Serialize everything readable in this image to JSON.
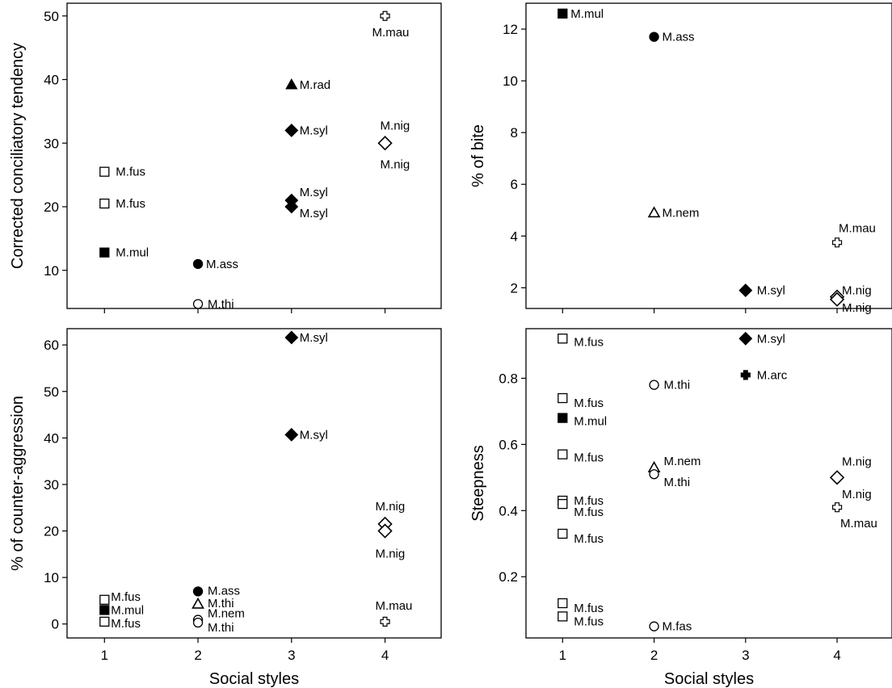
{
  "figure": {
    "xlabel_bottom_left": "Social styles",
    "xlabel_bottom_right": "Social styles"
  },
  "chart_data": [
    {
      "id": "ct",
      "type": "scatter",
      "ylabel": "Corrected conciliatory tendency",
      "xlabel": "",
      "xlim": [
        0.6,
        4.6
      ],
      "ylim": [
        4,
        52
      ],
      "xticks": [
        1,
        2,
        3,
        4
      ],
      "yticks": [
        10,
        20,
        30,
        40,
        50
      ],
      "show_xticklabels": false,
      "points": [
        {
          "x": 1,
          "y": 25.5,
          "marker": "square-open",
          "label": "M.fus",
          "dx": 14,
          "dy": 0
        },
        {
          "x": 1,
          "y": 20.5,
          "marker": "square-open",
          "label": "M.fus",
          "dx": 14,
          "dy": 0
        },
        {
          "x": 1,
          "y": 12.8,
          "marker": "square-filled",
          "label": "M.mul",
          "dx": 14,
          "dy": 0
        },
        {
          "x": 2,
          "y": 11.0,
          "marker": "circle-filled",
          "label": "M.ass",
          "dx": 10,
          "dy": 0
        },
        {
          "x": 2,
          "y": 4.7,
          "marker": "circle-open",
          "label": "M.thi",
          "dx": 12,
          "dy": 0
        },
        {
          "x": 3,
          "y": 39.2,
          "marker": "triangle-filled",
          "label": "M.rad",
          "dx": 10,
          "dy": 0
        },
        {
          "x": 3,
          "y": 32.0,
          "marker": "diamond-filled",
          "label": "M.syl",
          "dx": 10,
          "dy": 0
        },
        {
          "x": 3,
          "y": 21.0,
          "marker": "diamond-filled",
          "label": "M.syl",
          "dx": 10,
          "dy": -10
        },
        {
          "x": 3,
          "y": 20.0,
          "marker": "diamond-filled",
          "label": "M.syl",
          "dx": 10,
          "dy": 8
        },
        {
          "x": 4,
          "y": 50.0,
          "marker": "cross-open",
          "label": "M.mau",
          "dx": -16,
          "dy": 20
        },
        {
          "x": 4,
          "y": 30.0,
          "marker": "diamond-open",
          "label": "M.nig",
          "dx": -6,
          "dy": -22
        },
        {
          "x": 4,
          "y": 30.0,
          "marker": "none",
          "label": "M.nig",
          "dx": -6,
          "dy": 26
        }
      ]
    },
    {
      "id": "bite",
      "type": "scatter",
      "ylabel": "% of bite",
      "xlabel": "",
      "xlim": [
        0.6,
        4.6
      ],
      "ylim": [
        1.2,
        13
      ],
      "xticks": [
        1,
        2,
        3,
        4
      ],
      "yticks": [
        2,
        4,
        6,
        8,
        10,
        12
      ],
      "show_xticklabels": false,
      "points": [
        {
          "x": 1,
          "y": 12.6,
          "marker": "square-filled",
          "label": "M.mul",
          "dx": 10,
          "dy": 0
        },
        {
          "x": 2,
          "y": 11.7,
          "marker": "circle-filled",
          "label": "M.ass",
          "dx": 10,
          "dy": 0
        },
        {
          "x": 2,
          "y": 4.9,
          "marker": "triangle-open",
          "label": "M.nem",
          "dx": 10,
          "dy": 0
        },
        {
          "x": 3,
          "y": 1.9,
          "marker": "diamond-filled",
          "label": "M.syl",
          "dx": 14,
          "dy": 0
        },
        {
          "x": 4,
          "y": 3.75,
          "marker": "cross-open",
          "label": "M.mau",
          "dx": 2,
          "dy": -18
        },
        {
          "x": 4,
          "y": 1.65,
          "marker": "diamond-open",
          "label": "M.nig",
          "dx": 6,
          "dy": -8
        },
        {
          "x": 4,
          "y": 1.55,
          "marker": "diamond-open",
          "label": "M.nig",
          "dx": 6,
          "dy": 10
        }
      ]
    },
    {
      "id": "counter",
      "type": "scatter",
      "ylabel": "% of counter-aggression",
      "xlabel": "Social styles",
      "xlim": [
        0.6,
        4.6
      ],
      "ylim": [
        -3,
        63.5
      ],
      "xticks": [
        1,
        2,
        3,
        4
      ],
      "yticks": [
        0,
        10,
        20,
        30,
        40,
        50,
        60
      ],
      "show_xticklabels": true,
      "points": [
        {
          "x": 3,
          "y": 61.6,
          "marker": "diamond-filled",
          "label": "M.syl",
          "dx": 10,
          "dy": 0
        },
        {
          "x": 3,
          "y": 40.7,
          "marker": "diamond-filled",
          "label": "M.syl",
          "dx": 10,
          "dy": 0
        },
        {
          "x": 4,
          "y": 21.5,
          "marker": "diamond-open",
          "label": "M.nig",
          "dx": -12,
          "dy": -22
        },
        {
          "x": 4,
          "y": 20.0,
          "marker": "diamond-open",
          "label": "M.nig",
          "dx": -12,
          "dy": 28
        },
        {
          "x": 4,
          "y": 0.5,
          "marker": "cross-open",
          "label": "M.mau",
          "dx": -12,
          "dy": -20
        },
        {
          "x": 1,
          "y": 5.2,
          "marker": "square-open",
          "label": "M.fus",
          "dx": 8,
          "dy": -4
        },
        {
          "x": 1,
          "y": 3.0,
          "marker": "square-filled",
          "label": "M.mul",
          "dx": 8,
          "dy": 0
        },
        {
          "x": 1,
          "y": 0.5,
          "marker": "square-open",
          "label": "M.fus",
          "dx": 8,
          "dy": 2
        },
        {
          "x": 2,
          "y": 7.0,
          "marker": "circle-filled",
          "label": "M.ass",
          "dx": 12,
          "dy": -1
        },
        {
          "x": 2,
          "y": 4.3,
          "marker": "triangle-open",
          "label": "M.thi",
          "dx": 12,
          "dy": -1
        },
        {
          "x": 2,
          "y": 0.9,
          "marker": "circle-open",
          "label": "M.nem",
          "dx": 12,
          "dy": -8
        },
        {
          "x": 2,
          "y": 0.3,
          "marker": "circle-open",
          "label": "M.thi",
          "dx": 12,
          "dy": 6
        }
      ]
    },
    {
      "id": "steep",
      "type": "scatter",
      "ylabel": "Steepness",
      "xlabel": "Social styles",
      "xlim": [
        0.6,
        4.6
      ],
      "ylim": [
        0.015,
        0.95
      ],
      "xticks": [
        1,
        2,
        3,
        4
      ],
      "yticks": [
        0.2,
        0.4,
        0.6,
        0.8
      ],
      "show_xticklabels": true,
      "points": [
        {
          "x": 1,
          "y": 0.92,
          "marker": "square-open",
          "label": "M.fus",
          "dx": 14,
          "dy": 4
        },
        {
          "x": 1,
          "y": 0.74,
          "marker": "square-open",
          "label": "M.fus",
          "dx": 14,
          "dy": 6
        },
        {
          "x": 1,
          "y": 0.68,
          "marker": "square-filled",
          "label": "M.mul",
          "dx": 14,
          "dy": 4
        },
        {
          "x": 1,
          "y": 0.57,
          "marker": "square-open",
          "label": "M.fus",
          "dx": 14,
          "dy": 4
        },
        {
          "x": 1,
          "y": 0.43,
          "marker": "square-open",
          "label": "M.fus",
          "dx": 14,
          "dy": 0
        },
        {
          "x": 1,
          "y": 0.42,
          "marker": "square-open",
          "label": "M.fus",
          "dx": 14,
          "dy": 10
        },
        {
          "x": 1,
          "y": 0.33,
          "marker": "square-open",
          "label": "M.fus",
          "dx": 14,
          "dy": 6
        },
        {
          "x": 1,
          "y": 0.12,
          "marker": "square-open",
          "label": "M.fus",
          "dx": 14,
          "dy": 6
        },
        {
          "x": 1,
          "y": 0.08,
          "marker": "square-open",
          "label": "M.fus",
          "dx": 14,
          "dy": 6
        },
        {
          "x": 2,
          "y": 0.78,
          "marker": "circle-open",
          "label": "M.thi",
          "dx": 12,
          "dy": 0
        },
        {
          "x": 2,
          "y": 0.53,
          "marker": "triangle-open",
          "label": "M.nem",
          "dx": 12,
          "dy": -8
        },
        {
          "x": 2,
          "y": 0.51,
          "marker": "circle-open",
          "label": "M.thi",
          "dx": 12,
          "dy": 10
        },
        {
          "x": 2,
          "y": 0.05,
          "marker": "circle-open",
          "label": "M.fas",
          "dx": 10,
          "dy": 0
        },
        {
          "x": 3,
          "y": 0.92,
          "marker": "diamond-filled",
          "label": "M.syl",
          "dx": 14,
          "dy": 0
        },
        {
          "x": 3,
          "y": 0.81,
          "marker": "cross-filled",
          "label": "M.arc",
          "dx": 14,
          "dy": 0
        },
        {
          "x": 4,
          "y": 0.5,
          "marker": "diamond-open",
          "label": "M.nig",
          "dx": 6,
          "dy": -20
        },
        {
          "x": 4,
          "y": 0.41,
          "marker": "cross-open",
          "label": "M.nig",
          "dx": 6,
          "dy": -16
        },
        {
          "x": 4,
          "y": 0.41,
          "marker": "none",
          "label": "M.mau",
          "dx": 4,
          "dy": 20
        }
      ]
    }
  ]
}
